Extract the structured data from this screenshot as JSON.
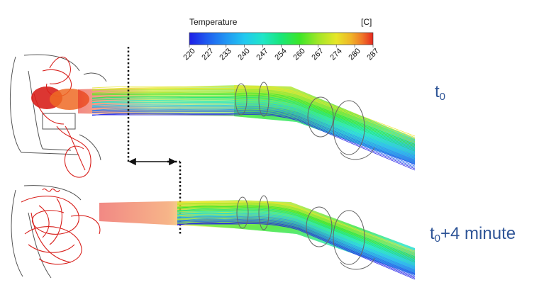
{
  "colorbar": {
    "title": "Temperature",
    "unit": "[C]",
    "ticks": [
      "220",
      "227",
      "233",
      "240",
      "247",
      "254",
      "260",
      "267",
      "274",
      "280",
      "287"
    ],
    "colors": [
      "#1e1ee6",
      "#1f5ff0",
      "#2196f3",
      "#21c8f0",
      "#20e6c8",
      "#18e678",
      "#3ce628",
      "#a0e628",
      "#e6e628",
      "#f0b428",
      "#f07828",
      "#e62820"
    ]
  },
  "labels": {
    "top": {
      "base": "t",
      "sub": "0",
      "suffix": ""
    },
    "bottom": {
      "base": "t",
      "sub": "0",
      "suffix": "+4 minute"
    }
  }
}
